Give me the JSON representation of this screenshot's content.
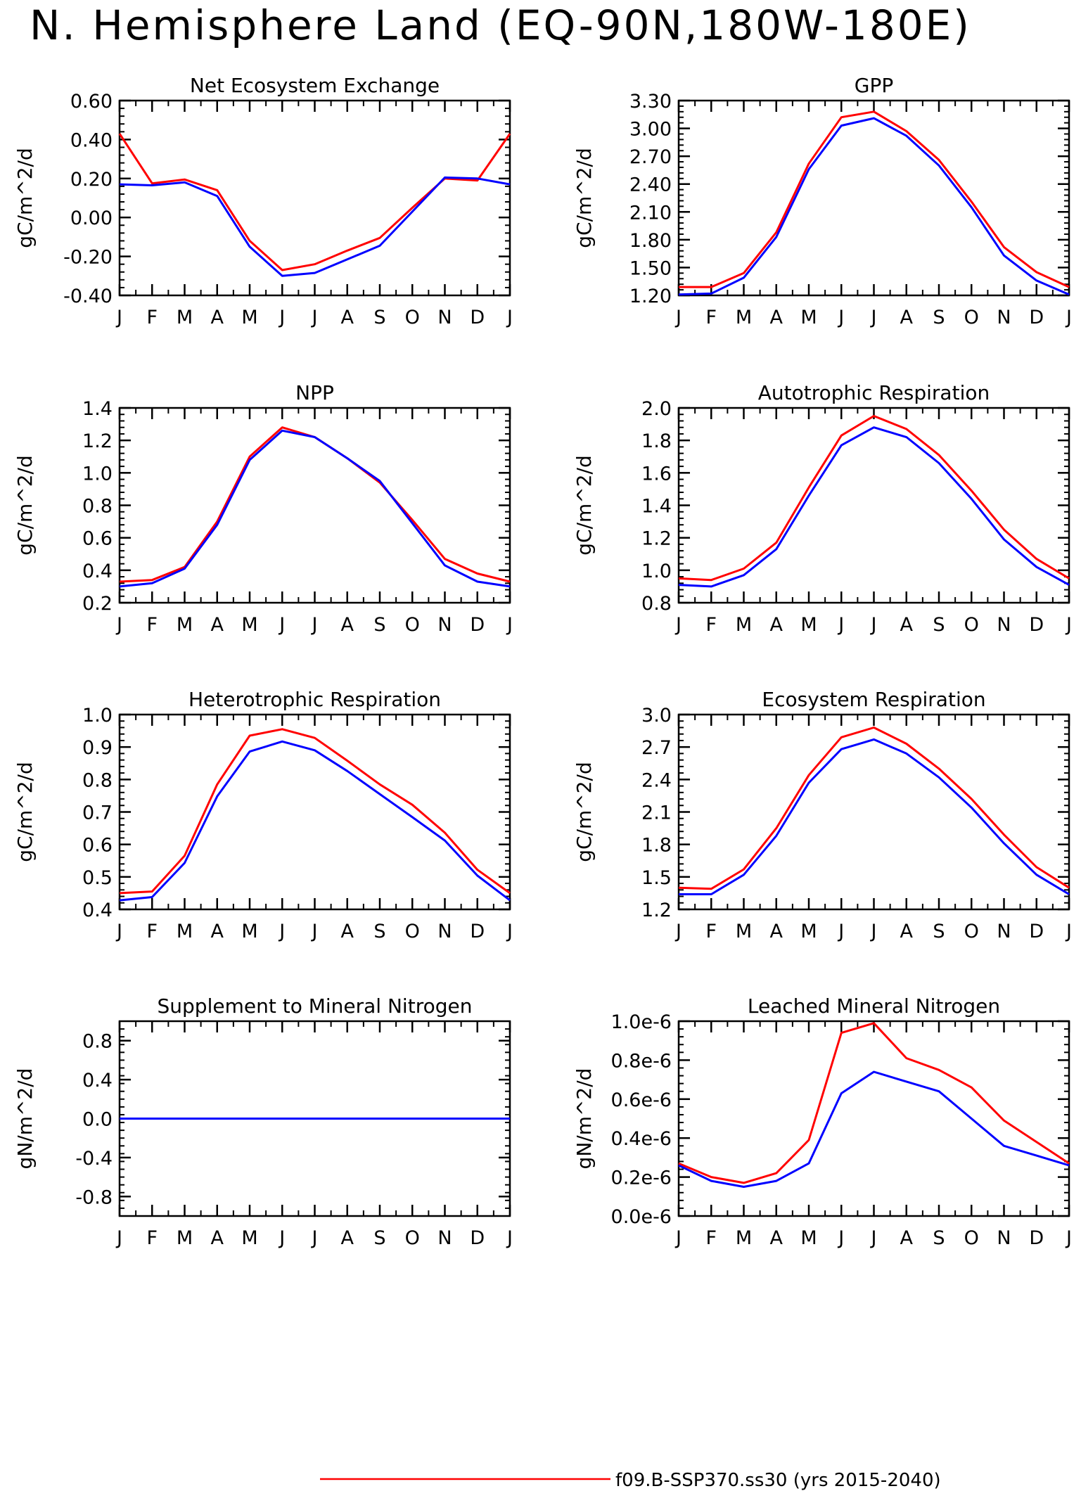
{
  "title": "N. Hemisphere Land (EQ-90N,180W-180E)",
  "legend": {
    "label": "f09.B-SSP370.ss30 (yrs 2015-2040)",
    "color": "#ff0000"
  },
  "colors": {
    "series_red": "#ff0000",
    "series_blue": "#0000ff",
    "axis": "#000000"
  },
  "months": [
    "J",
    "F",
    "M",
    "A",
    "M",
    "J",
    "J",
    "A",
    "S",
    "O",
    "N",
    "D",
    "J"
  ],
  "chart_data": [
    {
      "type": "line",
      "title": "Net Ecosystem Exchange",
      "ylabel": "gC/m^2/d",
      "ylim": [
        -0.4,
        0.6
      ],
      "yticks": [
        -0.4,
        -0.2,
        0.0,
        0.2,
        0.4,
        0.6
      ],
      "ytick_labels": [
        "-0.40",
        "-0.20",
        "0.00",
        "0.20",
        "0.40",
        "0.60"
      ],
      "categories": [
        "J",
        "F",
        "M",
        "A",
        "M",
        "J",
        "J",
        "A",
        "S",
        "O",
        "N",
        "D",
        "J"
      ],
      "series": [
        {
          "color": "#ff0000",
          "values": [
            0.43,
            0.175,
            0.195,
            0.14,
            -0.12,
            -0.27,
            -0.24,
            -0.17,
            -0.105,
            0.05,
            0.2,
            0.19,
            0.43
          ]
        },
        {
          "color": "#0000ff",
          "values": [
            0.17,
            0.165,
            0.18,
            0.11,
            -0.15,
            -0.3,
            -0.285,
            -0.215,
            -0.145,
            0.03,
            0.205,
            0.2,
            0.17
          ]
        }
      ]
    },
    {
      "type": "line",
      "title": "GPP",
      "ylabel": "gC/m^2/d",
      "ylim": [
        1.2,
        3.3
      ],
      "yticks": [
        1.2,
        1.5,
        1.8,
        2.1,
        2.4,
        2.7,
        3.0,
        3.3
      ],
      "ytick_labels": [
        "1.20",
        "1.50",
        "1.80",
        "2.10",
        "2.40",
        "2.70",
        "3.00",
        "3.30"
      ],
      "categories": [
        "J",
        "F",
        "M",
        "A",
        "M",
        "J",
        "J",
        "A",
        "S",
        "O",
        "N",
        "D",
        "J"
      ],
      "series": [
        {
          "color": "#ff0000",
          "values": [
            1.29,
            1.29,
            1.44,
            1.88,
            2.62,
            3.12,
            3.18,
            2.97,
            2.66,
            2.21,
            1.72,
            1.45,
            1.29
          ]
        },
        {
          "color": "#0000ff",
          "values": [
            1.21,
            1.22,
            1.39,
            1.83,
            2.56,
            3.03,
            3.11,
            2.92,
            2.6,
            2.15,
            1.63,
            1.36,
            1.21
          ]
        }
      ]
    },
    {
      "type": "line",
      "title": "NPP",
      "ylabel": "gC/m^2/d",
      "ylim": [
        0.2,
        1.4
      ],
      "yticks": [
        0.2,
        0.4,
        0.6,
        0.8,
        1.0,
        1.2,
        1.4
      ],
      "ytick_labels": [
        "0.2",
        "0.4",
        "0.6",
        "0.8",
        "1.0",
        "1.2",
        "1.4"
      ],
      "categories": [
        "J",
        "F",
        "M",
        "A",
        "M",
        "J",
        "J",
        "A",
        "S",
        "O",
        "N",
        "D",
        "J"
      ],
      "series": [
        {
          "color": "#ff0000",
          "values": [
            0.33,
            0.34,
            0.42,
            0.7,
            1.1,
            1.28,
            1.22,
            1.09,
            0.94,
            0.71,
            0.47,
            0.38,
            0.33
          ]
        },
        {
          "color": "#0000ff",
          "values": [
            0.3,
            0.32,
            0.41,
            0.68,
            1.08,
            1.26,
            1.22,
            1.09,
            0.95,
            0.69,
            0.43,
            0.33,
            0.3
          ]
        }
      ]
    },
    {
      "type": "line",
      "title": "Autotrophic Respiration",
      "ylabel": "gC/m^2/d",
      "ylim": [
        0.8,
        2.0
      ],
      "yticks": [
        0.8,
        1.0,
        1.2,
        1.4,
        1.6,
        1.8,
        2.0
      ],
      "ytick_labels": [
        "0.8",
        "1.0",
        "1.2",
        "1.4",
        "1.6",
        "1.8",
        "2.0"
      ],
      "categories": [
        "J",
        "F",
        "M",
        "A",
        "M",
        "J",
        "J",
        "A",
        "S",
        "O",
        "N",
        "D",
        "J"
      ],
      "series": [
        {
          "color": "#ff0000",
          "values": [
            0.95,
            0.94,
            1.01,
            1.17,
            1.51,
            1.83,
            1.95,
            1.87,
            1.71,
            1.49,
            1.25,
            1.07,
            0.95
          ]
        },
        {
          "color": "#0000ff",
          "values": [
            0.91,
            0.9,
            0.97,
            1.13,
            1.46,
            1.77,
            1.88,
            1.82,
            1.66,
            1.44,
            1.19,
            1.02,
            0.91
          ]
        }
      ]
    },
    {
      "type": "line",
      "title": "Heterotrophic Respiration",
      "ylabel": "gC/m^2/d",
      "ylim": [
        0.4,
        1.0
      ],
      "yticks": [
        0.4,
        0.5,
        0.6,
        0.7,
        0.8,
        0.9,
        1.0
      ],
      "ytick_labels": [
        "0.4",
        "0.5",
        "0.6",
        "0.7",
        "0.8",
        "0.9",
        "1.0"
      ],
      "categories": [
        "J",
        "F",
        "M",
        "A",
        "M",
        "J",
        "J",
        "A",
        "S",
        "O",
        "N",
        "D",
        "J"
      ],
      "series": [
        {
          "color": "#ff0000",
          "values": [
            0.45,
            0.455,
            0.565,
            0.785,
            0.935,
            0.955,
            0.928,
            0.858,
            0.785,
            0.722,
            0.636,
            0.522,
            0.45
          ]
        },
        {
          "color": "#0000ff",
          "values": [
            0.428,
            0.438,
            0.543,
            0.748,
            0.886,
            0.917,
            0.89,
            0.826,
            0.755,
            0.684,
            0.612,
            0.504,
            0.428
          ]
        }
      ]
    },
    {
      "type": "line",
      "title": "Ecosystem Respiration",
      "ylabel": "gC/m^2/d",
      "ylim": [
        1.2,
        3.0
      ],
      "yticks": [
        1.2,
        1.5,
        1.8,
        2.1,
        2.4,
        2.7,
        3.0
      ],
      "ytick_labels": [
        "1.2",
        "1.5",
        "1.8",
        "2.1",
        "2.4",
        "2.7",
        "3.0"
      ],
      "categories": [
        "J",
        "F",
        "M",
        "A",
        "M",
        "J",
        "J",
        "A",
        "S",
        "O",
        "N",
        "D",
        "J"
      ],
      "series": [
        {
          "color": "#ff0000",
          "values": [
            1.4,
            1.39,
            1.57,
            1.95,
            2.44,
            2.79,
            2.88,
            2.73,
            2.5,
            2.22,
            1.89,
            1.59,
            1.4
          ]
        },
        {
          "color": "#0000ff",
          "values": [
            1.34,
            1.34,
            1.52,
            1.88,
            2.37,
            2.68,
            2.77,
            2.64,
            2.42,
            2.14,
            1.81,
            1.52,
            1.34
          ]
        }
      ]
    },
    {
      "type": "line",
      "title": "Supplement to Mineral Nitrogen",
      "ylabel": "gN/m^2/d",
      "ylim": [
        -1.0,
        1.0
      ],
      "yticks": [
        -0.8,
        -0.4,
        0.0,
        0.4,
        0.8
      ],
      "ytick_labels": [
        "-0.8",
        "-0.4",
        "0.0",
        "0.4",
        "0.8"
      ],
      "categories": [
        "J",
        "F",
        "M",
        "A",
        "M",
        "J",
        "J",
        "A",
        "S",
        "O",
        "N",
        "D",
        "J"
      ],
      "series": [
        {
          "color": "#ff0000",
          "values": [
            0,
            0,
            0,
            0,
            0,
            0,
            0,
            0,
            0,
            0,
            0,
            0,
            0
          ]
        },
        {
          "color": "#0000ff",
          "values": [
            0,
            0,
            0,
            0,
            0,
            0,
            0,
            0,
            0,
            0,
            0,
            0,
            0
          ]
        }
      ]
    },
    {
      "type": "line",
      "title": "Leached Mineral Nitrogen",
      "ylabel": "gN/m^2/d",
      "ylim": [
        0.0,
        1e-06
      ],
      "yticks": [
        0.0,
        2e-07,
        4e-07,
        6e-07,
        8e-07,
        1e-06
      ],
      "ytick_labels": [
        "0.0e-6",
        "0.2e-6",
        "0.4e-6",
        "0.6e-6",
        "0.8e-6",
        "1.0e-6"
      ],
      "categories": [
        "J",
        "F",
        "M",
        "A",
        "M",
        "J",
        "J",
        "A",
        "S",
        "O",
        "N",
        "D",
        "J"
      ],
      "series": [
        {
          "color": "#ff0000",
          "values": [
            2.7e-07,
            2e-07,
            1.7e-07,
            2.2e-07,
            3.9e-07,
            9.4e-07,
            9.9e-07,
            8.1e-07,
            7.5e-07,
            6.6e-07,
            4.9e-07,
            3.8e-07,
            2.7e-07
          ]
        },
        {
          "color": "#0000ff",
          "values": [
            2.6e-07,
            1.8e-07,
            1.5e-07,
            1.8e-07,
            2.7e-07,
            6.3e-07,
            7.4e-07,
            6.9e-07,
            6.4e-07,
            5e-07,
            3.6e-07,
            3.1e-07,
            2.6e-07
          ]
        }
      ]
    }
  ]
}
